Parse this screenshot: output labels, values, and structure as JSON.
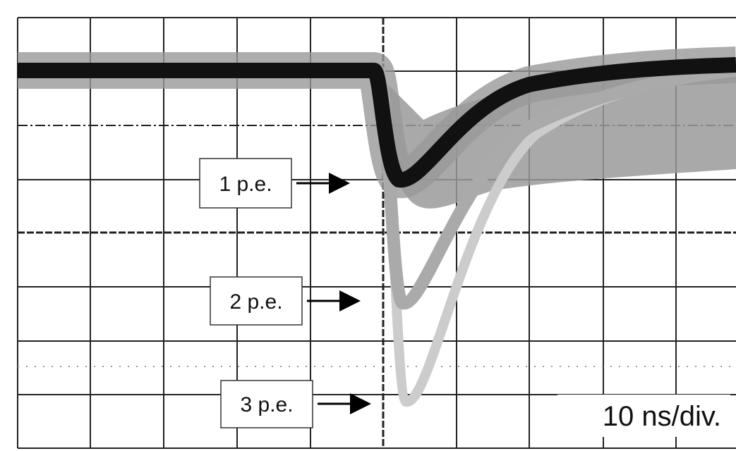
{
  "labels": {
    "pe1": "1 p.e.",
    "pe2": "2 p.e.",
    "pe3": "3 p.e."
  },
  "timebase": "10 ns/div."
}
